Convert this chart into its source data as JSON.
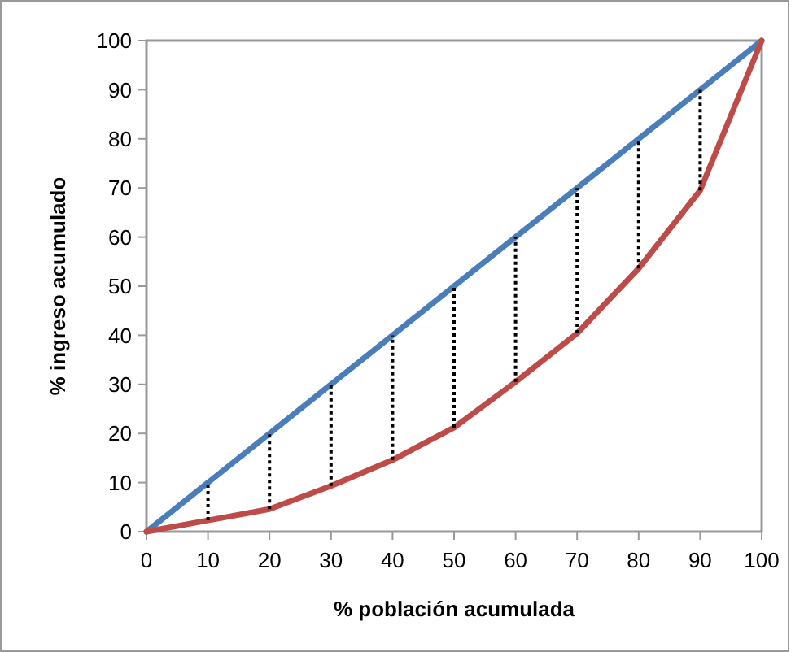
{
  "chart_data": {
    "type": "line",
    "xlabel": "% población acumulada",
    "ylabel": "% ingreso acumulado",
    "x": [
      0,
      10,
      20,
      30,
      40,
      50,
      60,
      70,
      80,
      90,
      100
    ],
    "series": [
      {
        "color": "#4a7ebb",
        "values": [
          0,
          10,
          20,
          30,
          40,
          50,
          60,
          70,
          80,
          90,
          100
        ],
        "errors": [
          null,
          [
            2.3,
            10
          ],
          [
            4.6,
            20
          ],
          [
            9.3,
            30
          ],
          [
            14.6,
            40
          ],
          [
            21.2,
            50
          ],
          [
            30.5,
            60
          ],
          [
            40.4,
            70
          ],
          [
            53.6,
            80
          ],
          [
            69.5,
            90
          ],
          null
        ]
      },
      {
        "color": "#be4b48",
        "values": [
          0,
          2.3,
          4.6,
          9.3,
          14.6,
          21.2,
          30.5,
          40.4,
          53.6,
          69.5,
          100
        ]
      }
    ],
    "xlim": [
      0,
      100
    ],
    "xticks": [
      0,
      10,
      20,
      30,
      40,
      50,
      60,
      70,
      80,
      90,
      100
    ],
    "ylim": [
      0,
      100
    ],
    "yticks": [
      0,
      10,
      20,
      30,
      40,
      50,
      60,
      70,
      80,
      90,
      100
    ],
    "grid": false,
    "marker": "none",
    "line_style": "solid"
  }
}
